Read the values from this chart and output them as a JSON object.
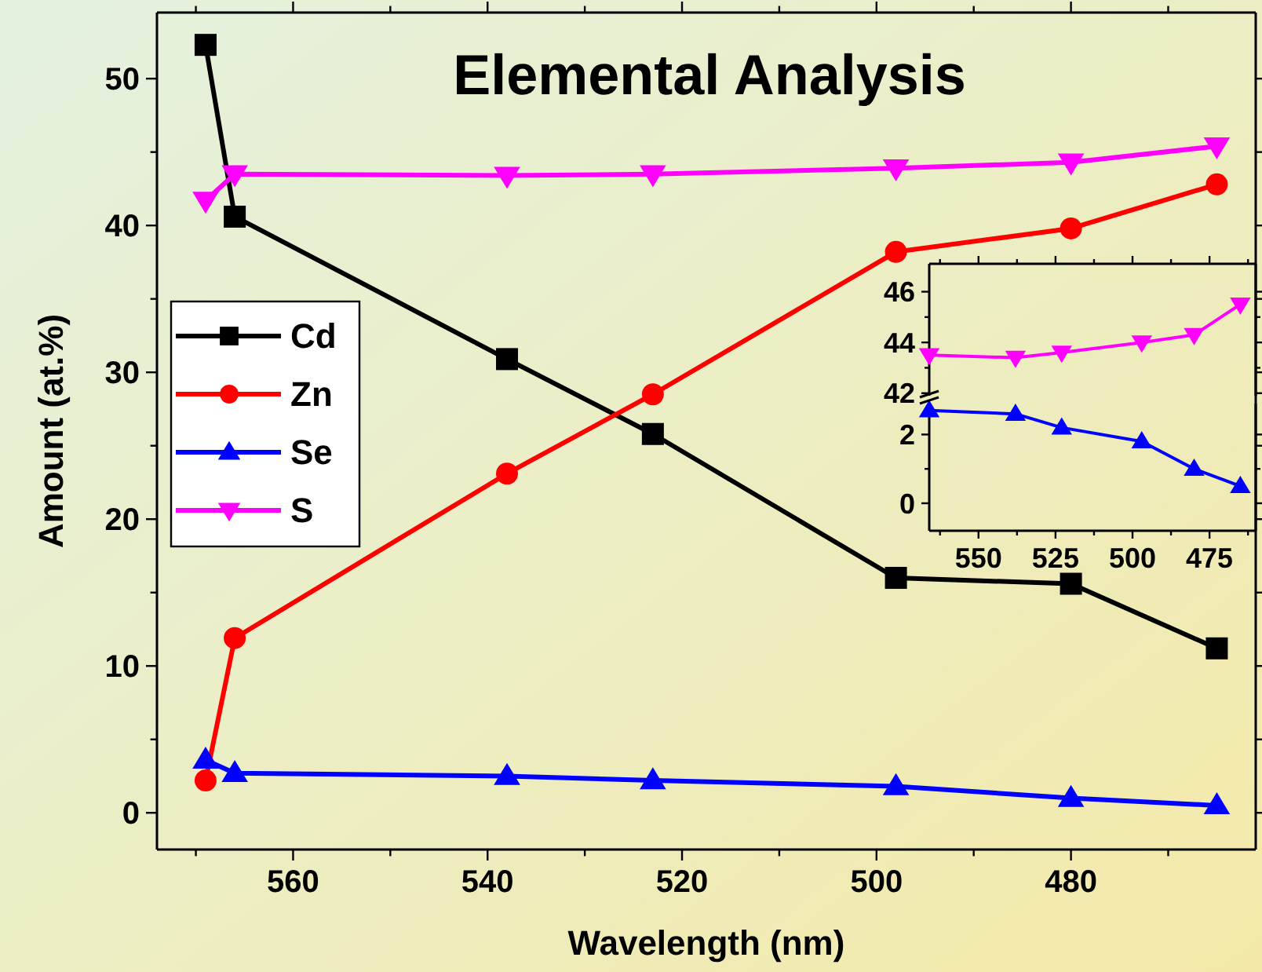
{
  "chart_data": [
    {
      "type": "line",
      "title": "Elemental Analysis",
      "xlabel": "Wavelength (nm)",
      "ylabel": "Amount (at.%)",
      "xlim": [
        574,
        461
      ],
      "ylim": [
        -2.5,
        54.5
      ],
      "xticks": [
        {
          "value": 570,
          "label": null
        },
        560,
        {
          "value": 550,
          "label": null
        },
        540,
        {
          "value": 530,
          "label": null
        },
        520,
        {
          "value": 510,
          "label": null
        },
        500,
        {
          "value": 490,
          "label": null
        },
        480,
        {
          "value": 470,
          "label": null
        }
      ],
      "yticks": [
        0,
        {
          "value": 5,
          "label": null
        },
        10,
        {
          "value": 15,
          "label": null
        },
        20,
        {
          "value": 25,
          "label": null
        },
        30,
        {
          "value": 35,
          "label": null
        },
        40,
        {
          "value": 45,
          "label": null
        },
        50
      ],
      "grid": false,
      "legend": "left",
      "line_style": "solid",
      "series": [
        {
          "name": "Cd",
          "color": "#000000",
          "marker": "square",
          "x": [
            569,
            566,
            538,
            523,
            498,
            480,
            465
          ],
          "values": [
            52.3,
            40.6,
            30.9,
            25.8,
            16.0,
            15.6,
            11.2
          ]
        },
        {
          "name": "Zn",
          "color": "#ff0000",
          "marker": "circle",
          "x": [
            569,
            566,
            538,
            523,
            498,
            480,
            465
          ],
          "values": [
            2.2,
            11.9,
            23.1,
            28.5,
            38.2,
            39.8,
            42.8
          ]
        },
        {
          "name": "Se",
          "color": "#0000ff",
          "marker": "triangle",
          "x": [
            569,
            566,
            538,
            523,
            498,
            480,
            465
          ],
          "values": [
            3.6,
            2.7,
            2.5,
            2.2,
            1.8,
            1.0,
            0.5
          ]
        },
        {
          "name": "S",
          "color": "#ff00ff",
          "marker": "triangle-down",
          "x": [
            569,
            566,
            538,
            523,
            498,
            480,
            465
          ],
          "values": [
            41.7,
            43.5,
            43.4,
            43.5,
            43.9,
            44.3,
            45.4
          ]
        }
      ]
    },
    {
      "type": "line",
      "xlim": [
        566,
        460
      ],
      "ylim": [
        41.9,
        47.1
      ],
      "xticks": [
        {
          "value": 562.5,
          "label": null
        },
        550,
        {
          "value": 537.5,
          "label": null
        },
        525,
        {
          "value": 512.5,
          "label": null
        },
        500,
        {
          "value": 487.5,
          "label": null
        },
        475,
        {
          "value": 462.5,
          "label": null
        }
      ],
      "yticks": [
        42,
        {
          "value": 43,
          "label": null
        },
        44,
        {
          "value": 45,
          "label": null
        },
        46
      ],
      "tick_labels": "y",
      "grid": false,
      "line_style": "solid",
      "series": [
        {
          "color": "#ff00ff",
          "marker": "triangle-down",
          "x": [
            566,
            538,
            523,
            497,
            480,
            465
          ],
          "values": [
            43.5,
            43.4,
            43.6,
            44.0,
            44.3,
            45.5
          ]
        }
      ]
    },
    {
      "type": "line",
      "xlim": [
        566,
        460
      ],
      "ylim": [
        -0.8,
        2.9
      ],
      "xticks": [
        {
          "value": 562.5,
          "label": null
        },
        550,
        {
          "value": 537.5,
          "label": null
        },
        525,
        {
          "value": 512.5,
          "label": null
        },
        500,
        {
          "value": 487.5,
          "label": null
        },
        475,
        {
          "value": 462.5,
          "label": null
        }
      ],
      "yticks": [
        0,
        {
          "value": 1,
          "label": null
        },
        2
      ],
      "grid": false,
      "line_style": "solid",
      "series": [
        {
          "color": "#0000ff",
          "marker": "triangle",
          "x": [
            566,
            538,
            523,
            497,
            480,
            465
          ],
          "values": [
            2.7,
            2.6,
            2.2,
            1.8,
            1.0,
            0.5
          ]
        }
      ]
    }
  ]
}
